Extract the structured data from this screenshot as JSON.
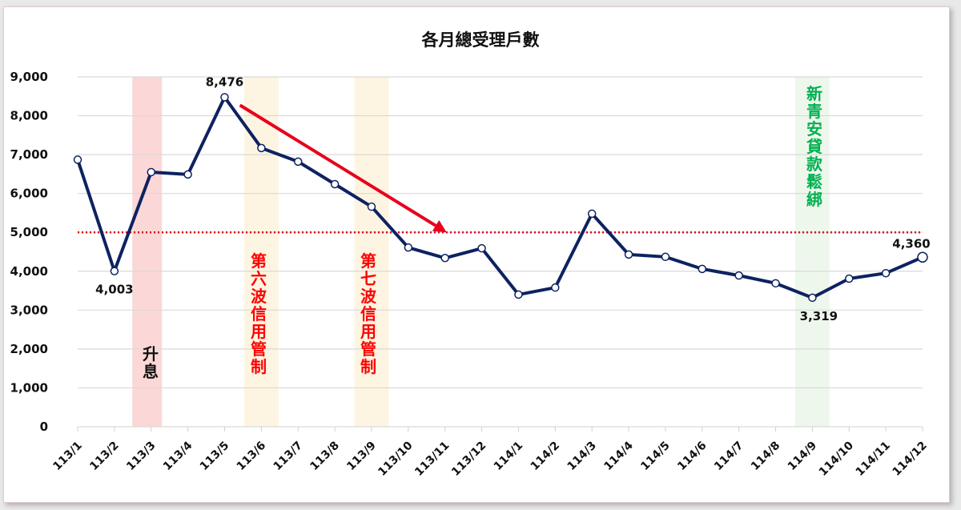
{
  "chart_data": {
    "type": "line",
    "title": "各月總受理戶數",
    "xlabel": "",
    "ylabel": "",
    "ylim": [
      0,
      9000
    ],
    "yticks": [
      0,
      1000,
      2000,
      3000,
      4000,
      5000,
      6000,
      7000,
      8000,
      9000
    ],
    "ytick_labels": [
      "0",
      "1,000",
      "2,000",
      "3,000",
      "4,000",
      "5,000",
      "6,000",
      "7,000",
      "8,000",
      "9,000"
    ],
    "grid": true,
    "categories": [
      "113/1",
      "113/2",
      "113/3",
      "113/4",
      "113/5",
      "113/6",
      "113/7",
      "113/8",
      "113/9",
      "113/10",
      "113/11",
      "113/12",
      "114/1",
      "114/2",
      "114/3",
      "114/4",
      "114/5",
      "114/6",
      "114/7",
      "114/8",
      "114/9",
      "114/10",
      "114/11",
      "114/12"
    ],
    "series": [
      {
        "name": "總受理戶數",
        "color": "#0d2260",
        "values": [
          6870,
          4003,
          6550,
          6490,
          8476,
          7170,
          6820,
          6240,
          5660,
          4610,
          4340,
          4590,
          3400,
          3580,
          5480,
          4430,
          4370,
          4060,
          3890,
          3690,
          3319,
          3810,
          3950,
          4360
        ]
      }
    ],
    "data_labels": [
      {
        "index": 1,
        "text": "4,003",
        "position": "below"
      },
      {
        "index": 4,
        "text": "8,476",
        "position": "above"
      },
      {
        "index": 20,
        "text": "3,319",
        "position": "below"
      },
      {
        "index": 23,
        "text": "4,360",
        "position": "above",
        "color": "#0d2260",
        "emphasis": true
      }
    ],
    "reference_line": {
      "value": 5000,
      "color": "#e8001c",
      "style": "dotted"
    },
    "trend_arrow": {
      "from_index": 4.2,
      "from_value": 8230,
      "to_index": 10,
      "to_value": 5000,
      "color": "#e8001c"
    },
    "annotations": [
      {
        "text": "升息",
        "at_category": "113/3",
        "band_color": "#fcd7d7",
        "text_color": "#111111"
      },
      {
        "text": "第六波信用管制",
        "at_category": "113/6",
        "band_color": "#fdf5e1",
        "text_color": "#ff0000"
      },
      {
        "text": "第七波信用管制",
        "at_category": "113/9",
        "band_color": "#fdf5e1",
        "text_color": "#ff0000"
      },
      {
        "text": "新青安貸款鬆綁",
        "at_category": "114/9",
        "band_color": "#eef7ec",
        "text_color": "#00b050"
      }
    ]
  }
}
